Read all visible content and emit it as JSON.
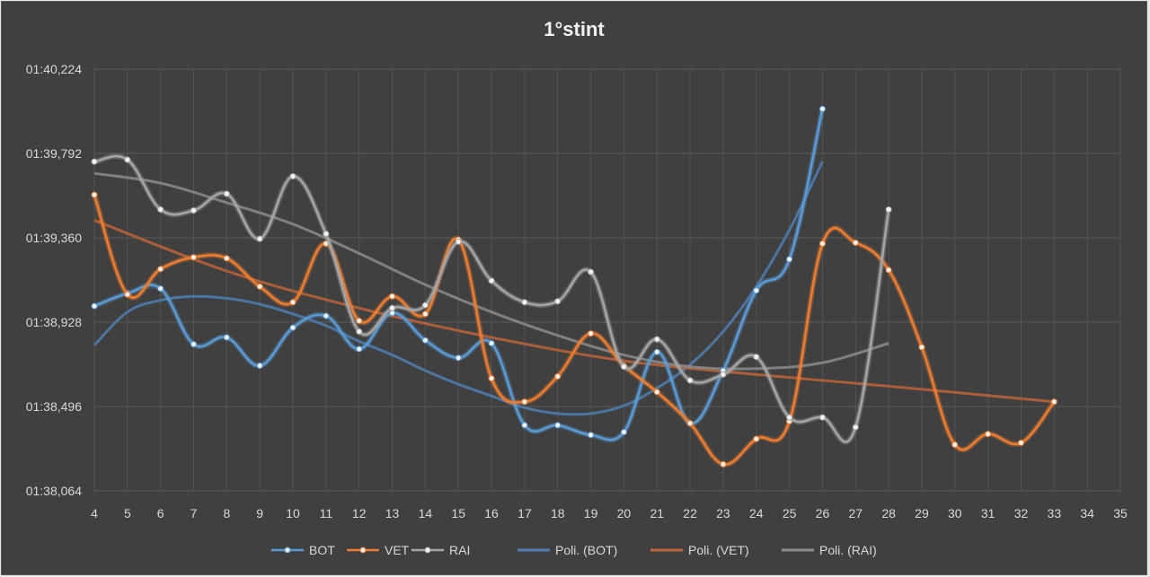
{
  "chart_data": {
    "type": "line",
    "title": "1°stint",
    "xlabel": "",
    "ylabel": "",
    "x_ticks": [
      "4",
      "5",
      "6",
      "7",
      "8",
      "9",
      "10",
      "11",
      "12",
      "13",
      "14",
      "15",
      "16",
      "17",
      "18",
      "19",
      "20",
      "21",
      "22",
      "23",
      "24",
      "25",
      "26",
      "27",
      "28",
      "29",
      "30",
      "31",
      "32",
      "33",
      "34",
      "35"
    ],
    "xlim": [
      4,
      35
    ],
    "y_ticks_seconds": [
      98.064,
      98.496,
      98.928,
      99.36,
      99.792,
      100.224
    ],
    "y_tick_labels": [
      "01:38,064",
      "01:38,496",
      "01:38,928",
      "01:39,360",
      "01:39,792",
      "01:40,224"
    ],
    "ylim_seconds": [
      98.064,
      100.224
    ],
    "grid": true,
    "legend_position": "bottom",
    "series": [
      {
        "name": "BOT",
        "color": "#5b9bd5",
        "x": [
          4,
          5,
          6,
          7,
          8,
          9,
          10,
          11,
          12,
          13,
          14,
          15,
          16,
          17,
          18,
          19,
          20,
          21,
          22,
          23,
          24,
          25,
          26
        ],
        "y": [
          99.01,
          99.075,
          99.1,
          98.815,
          98.85,
          98.705,
          98.9,
          98.96,
          98.79,
          98.975,
          98.835,
          98.745,
          98.82,
          98.4,
          98.4,
          98.35,
          98.365,
          98.775,
          98.41,
          98.68,
          99.09,
          99.25,
          100.02
        ]
      },
      {
        "name": "VET",
        "color": "#ed7d31",
        "x": [
          4,
          5,
          6,
          7,
          8,
          9,
          10,
          11,
          12,
          13,
          14,
          15,
          16,
          17,
          18,
          19,
          20,
          21,
          22,
          23,
          24,
          25,
          26,
          27,
          28,
          29,
          30,
          31,
          32,
          33
        ],
        "y": [
          99.58,
          99.07,
          99.2,
          99.26,
          99.255,
          99.11,
          99.03,
          99.33,
          98.935,
          99.06,
          98.97,
          99.35,
          98.64,
          98.52,
          98.65,
          98.87,
          98.705,
          98.57,
          98.41,
          98.2,
          98.33,
          98.42,
          99.33,
          99.335,
          99.195,
          98.8,
          98.3,
          98.355,
          98.31,
          98.52
        ]
      },
      {
        "name": "RAI",
        "color": "#a5a5a5",
        "x": [
          4,
          5,
          6,
          7,
          8,
          9,
          10,
          11,
          12,
          13,
          14,
          15,
          16,
          17,
          18,
          19,
          20,
          21,
          22,
          23,
          24,
          25,
          26,
          27,
          28
        ],
        "y": [
          99.75,
          99.76,
          99.505,
          99.5,
          99.585,
          99.355,
          99.675,
          99.38,
          98.88,
          99.0,
          99.015,
          99.34,
          99.14,
          99.03,
          99.035,
          99.185,
          98.7,
          98.84,
          98.63,
          98.66,
          98.75,
          98.44,
          98.44,
          98.39,
          99.505
        ]
      },
      {
        "name": "Poli. (BOT)",
        "color": "#4f7fb3",
        "trend": true,
        "x": [
          4,
          5,
          6,
          7,
          8,
          9,
          10,
          11,
          12,
          13,
          14,
          15,
          16,
          17,
          18,
          19,
          20,
          21,
          22,
          23,
          24,
          25,
          26
        ],
        "y": [
          98.81,
          98.98,
          99.04,
          99.06,
          99.05,
          99.02,
          98.97,
          98.91,
          98.83,
          98.76,
          98.68,
          98.61,
          98.55,
          98.49,
          98.46,
          98.46,
          98.5,
          98.59,
          98.71,
          98.88,
          99.11,
          99.4,
          99.75
        ]
      },
      {
        "name": "Poli. (VET)",
        "color": "#c0643a",
        "trend": true,
        "x": [
          4,
          8,
          12,
          16,
          20,
          24,
          28,
          33
        ],
        "y": [
          99.45,
          99.19,
          99.0,
          98.85,
          98.73,
          98.66,
          98.6,
          98.52
        ]
      },
      {
        "name": "Poli. (RAI)",
        "color": "#8c8c8c",
        "trend": true,
        "x": [
          4,
          6,
          8,
          10,
          12,
          14,
          16,
          18,
          20,
          22,
          24,
          26,
          28
        ],
        "y": [
          99.69,
          99.64,
          99.54,
          99.43,
          99.28,
          99.12,
          98.98,
          98.86,
          98.76,
          98.7,
          98.69,
          98.72,
          98.82
        ]
      }
    ]
  }
}
